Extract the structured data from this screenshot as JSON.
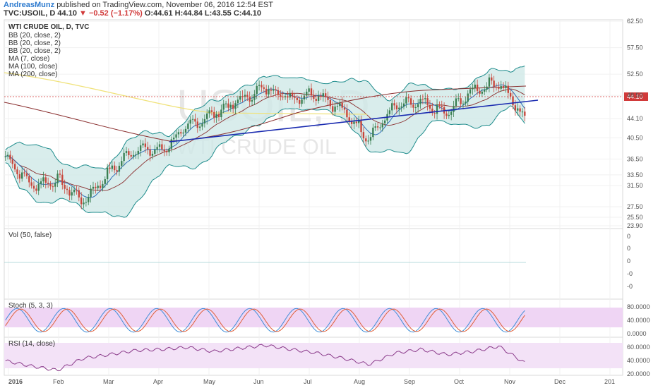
{
  "header": {
    "author": "AndreasMunz",
    "published": "published on TradingView.com, November 06, 2016 12:54 EST",
    "symbol": "TVC:USOIL, D",
    "last": "44.10",
    "change": "−0.52 (−1.17%)",
    "ohlc_o": "O:44.61",
    "ohlc_h": "H:44.84",
    "ohlc_l": "L:43.55",
    "ohlc_c": "C:44.10"
  },
  "legend": {
    "title": "WTI CRUDE OIL, D, TVC",
    "items": [
      "BB (20, close, 2)",
      "BB (20, close, 2)",
      "BB (20, close, 2)",
      "MA (7, close)",
      "MA (100, close)",
      "MA (200, close)"
    ]
  },
  "watermark": {
    "symbol": "USOIL, D",
    "name": "WTI CRUDE OIL"
  },
  "colors": {
    "up": "#3a7f52",
    "down": "#c8453a",
    "bb_fill": "#cfe9e7",
    "bb_line": "#1e8c8c",
    "ma7": "#2f6fb8",
    "ma100": "#8a2f2f",
    "ma200": "#f0e27a",
    "trend": "#1a2bb0",
    "stoch_bg": "#efd5f4",
    "stoch_k": "#3f8ed8",
    "stoch_d": "#e0603a",
    "rsi_bg": "#f3e2f7",
    "rsi_line": "#8a3a8a",
    "price_line": "#d13a3a"
  },
  "price_label": "44.10",
  "chart_data": [
    {
      "type": "candlestick",
      "panel": "price",
      "x_labels": [
        "2016",
        "Feb",
        "Mar",
        "Apr",
        "May",
        "Jun",
        "Jul",
        "Aug",
        "Sep",
        "Oct",
        "Nov",
        "Dec",
        "201"
      ],
      "y_ticks": [
        "62.50",
        "57.50",
        "52.50",
        "48.50",
        "44.10",
        "40.50",
        "36.50",
        "33.50",
        "31.50",
        "27.50",
        "25.50",
        "23.90"
      ],
      "ylim": [
        23.9,
        62.5
      ],
      "series": [
        {
          "name": "price",
          "x": [
            "Jan",
            "mid-Jan",
            "Feb",
            "mid-Feb",
            "Mar",
            "mid-Mar",
            "Apr",
            "mid-Apr",
            "May",
            "mid-May",
            "Jun",
            "mid-Jun",
            "Jul",
            "mid-Jul",
            "Aug",
            "mid-Aug",
            "Sep",
            "mid-Sep",
            "Oct",
            "mid-Oct",
            "Nov"
          ],
          "values": [
            37.0,
            31.5,
            32.5,
            28.5,
            34.0,
            38.5,
            38.0,
            42.5,
            45.0,
            47.5,
            50.0,
            48.0,
            49.0,
            45.5,
            40.5,
            46.5,
            47.0,
            45.0,
            49.5,
            51.0,
            44.1
          ]
        }
      ]
    },
    {
      "type": "line",
      "panel": "volume",
      "title": "Vol (50, false)",
      "y_ticks": [
        "0",
        "0",
        "0",
        "-0",
        "-0"
      ]
    },
    {
      "type": "line",
      "panel": "stochastic",
      "title": "Stoch (5, 3, 3)",
      "y_ticks": [
        "80.0000",
        "40.0000",
        "0.0000"
      ],
      "ylim": [
        0,
        100
      ]
    },
    {
      "type": "line",
      "panel": "rsi",
      "title": "RSI (14, close)",
      "y_ticks": [
        "60.0000",
        "40.0000",
        "20.0000"
      ],
      "ylim": [
        15,
        80
      ],
      "values": [
        40,
        30,
        22,
        45,
        52,
        60,
        62,
        66,
        58,
        64,
        70,
        62,
        55,
        45,
        33,
        55,
        62,
        52,
        58,
        68,
        36
      ]
    }
  ]
}
